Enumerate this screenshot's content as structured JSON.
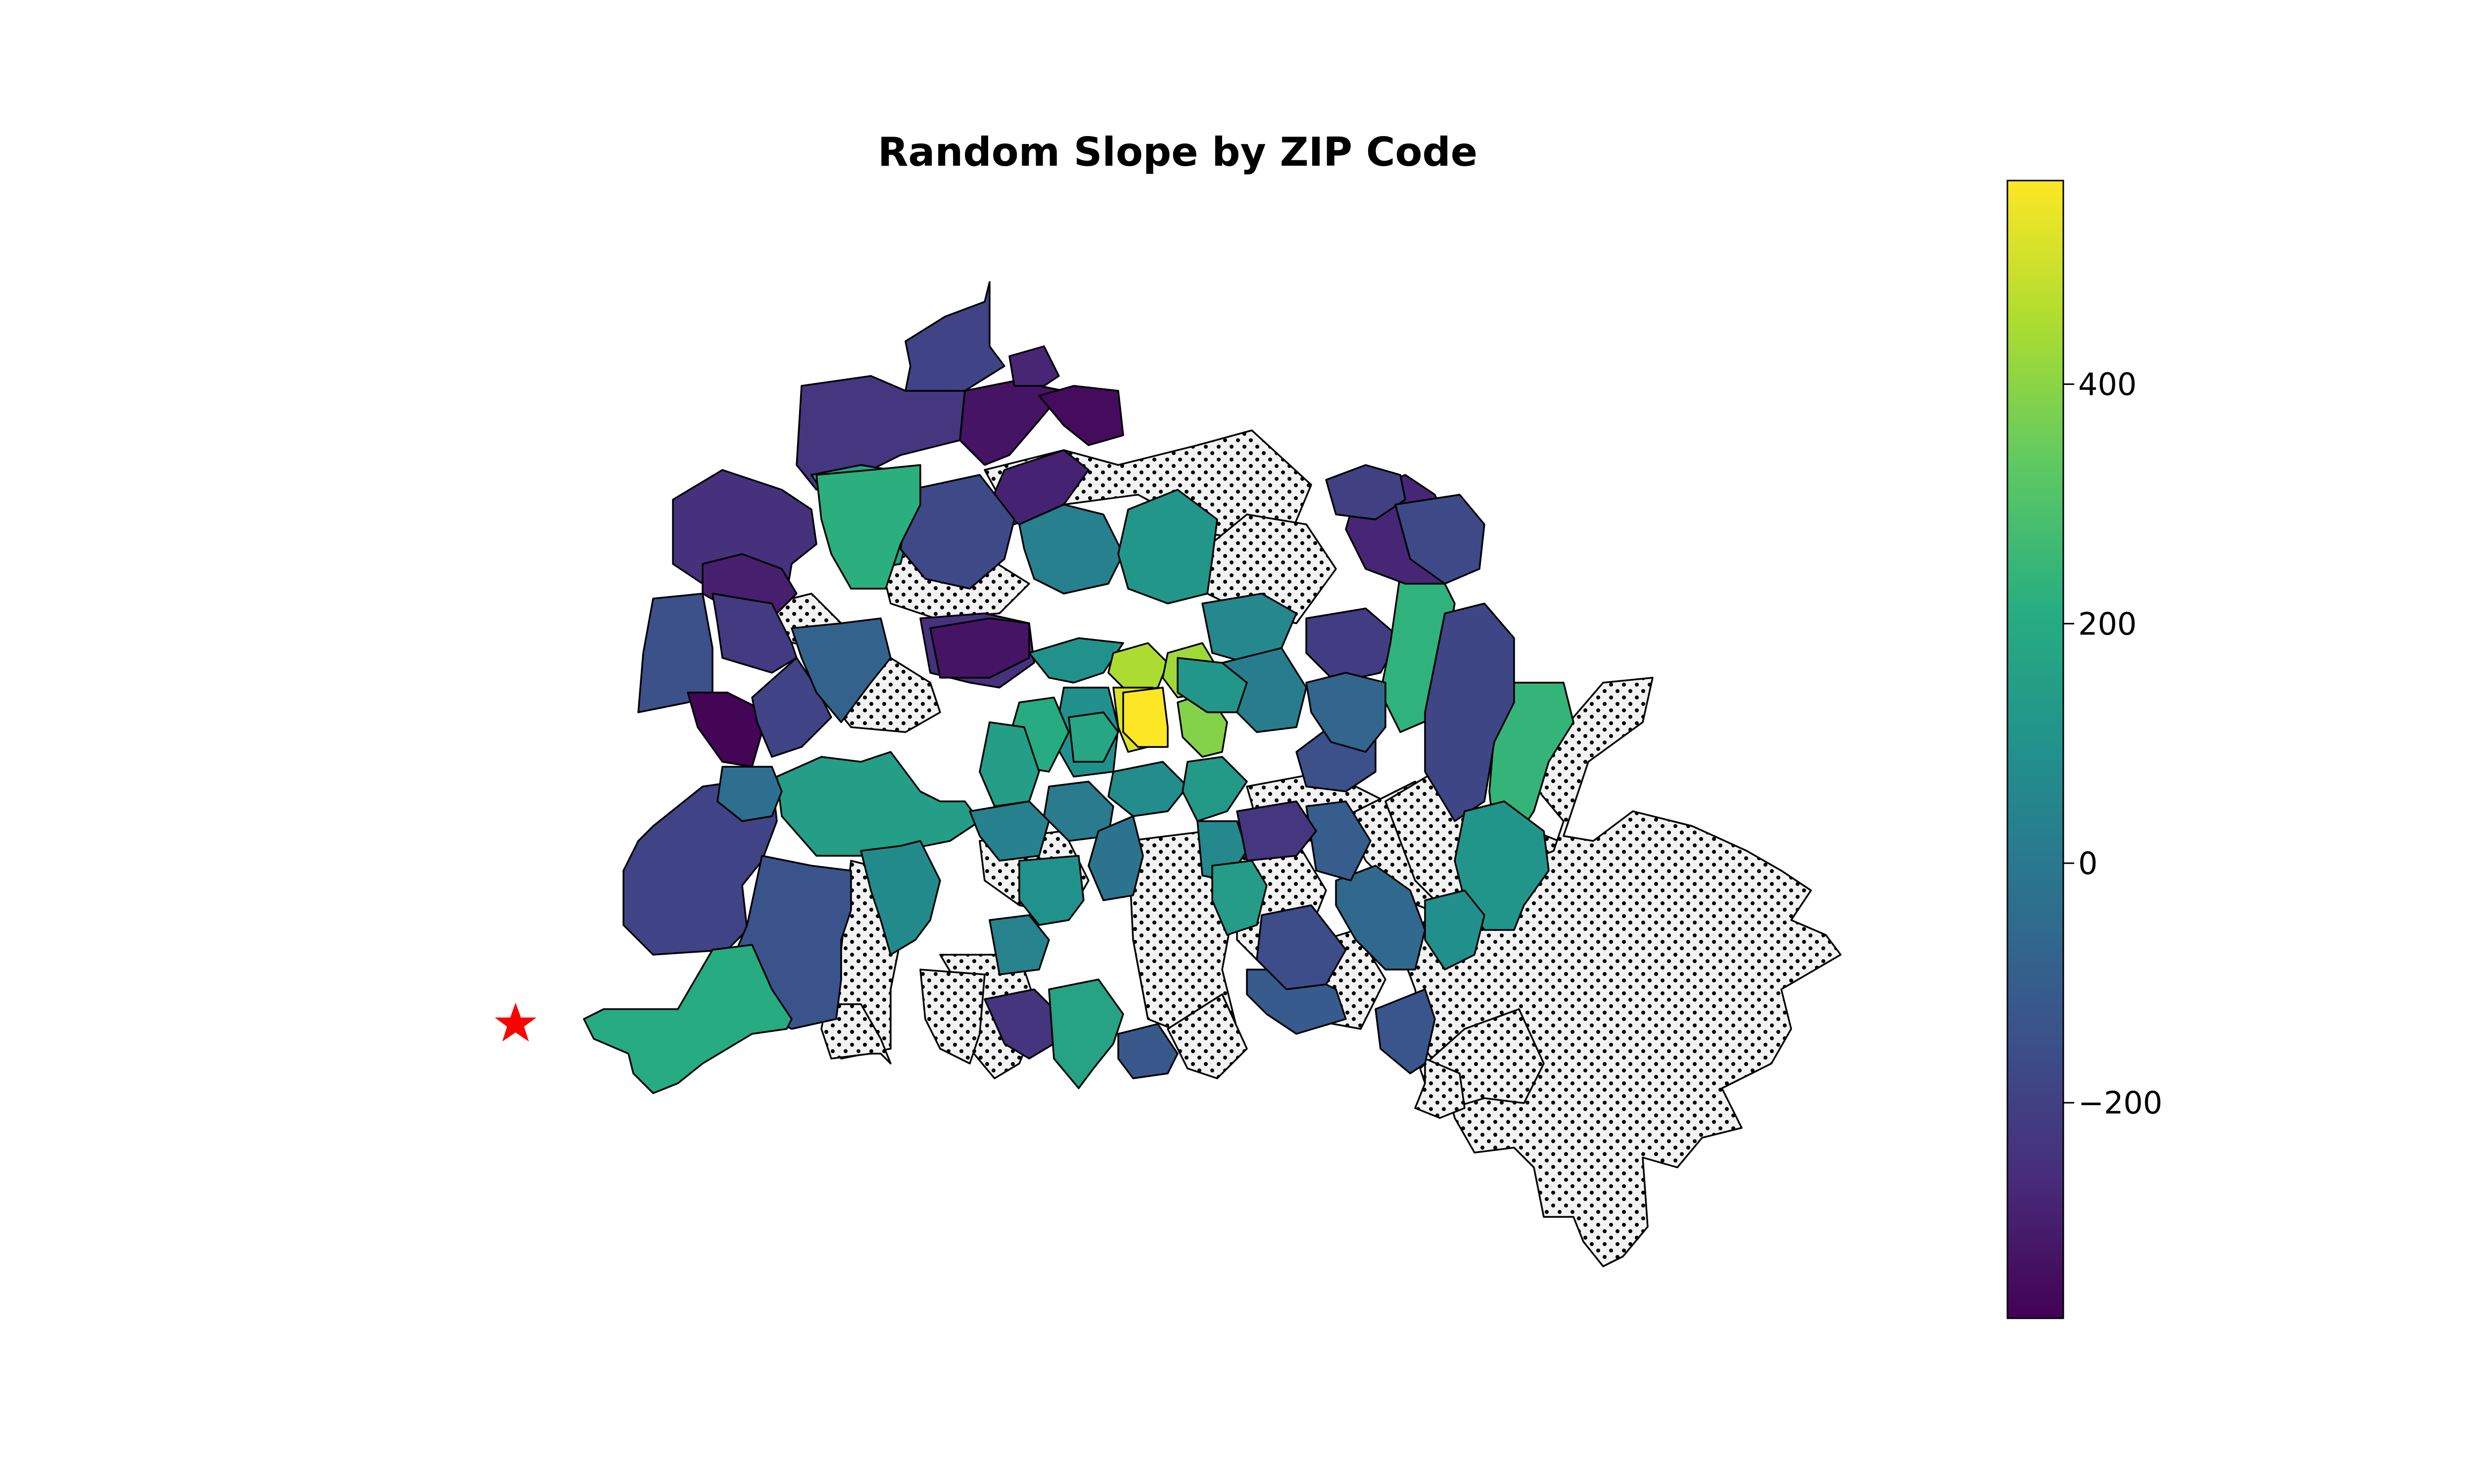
{
  "chart_data": {
    "type": "choropleth",
    "title": "Random Slope by ZIP Code",
    "colormap": "viridis",
    "colorbar": {
      "min": -380,
      "max": 570,
      "ticks": [
        {
          "value": 400,
          "label": "400"
        },
        {
          "value": 200,
          "label": "200"
        },
        {
          "value": 0,
          "label": "0"
        },
        {
          "value": -200,
          "label": "−200"
        }
      ]
    },
    "no_data_pattern": "dotted",
    "marker": {
      "shape": "star",
      "color": "#ff0000"
    },
    "regions": [
      {
        "value": -230
      },
      {
        "value": -190
      },
      {
        "value": -330
      },
      {
        "value": -350
      },
      {
        "value": -290
      },
      {
        "value": 160
      },
      {
        "value": -170
      },
      {
        "value": -250
      },
      {
        "value": -300
      },
      {
        "value": -150
      },
      {
        "value": -220
      },
      {
        "value": -370
      },
      {
        "value": -190
      },
      {
        "value": 220
      },
      {
        "value": -80
      },
      {
        "value": 150
      },
      {
        "value": -190
      },
      {
        "value": -140
      },
      {
        "value": -250
      },
      {
        "value": 70
      },
      {
        "value": 30
      },
      {
        "value": -330
      },
      {
        "value": 120
      },
      {
        "value": 100
      },
      {
        "value": 450
      },
      {
        "value": 520
      },
      {
        "value": 430
      },
      {
        "value": 570
      },
      {
        "value": 390
      },
      {
        "value": 60
      },
      {
        "value": 20
      },
      {
        "value": 90
      },
      {
        "value": 180
      },
      {
        "value": 200
      },
      {
        "value": 150
      },
      {
        "value": -150
      },
      {
        "value": -210
      },
      {
        "value": 230
      },
      {
        "value": -70
      },
      {
        "value": -280
      },
      {
        "value": 240
      },
      {
        "value": -180
      },
      {
        "value": -200
      },
      {
        "value": -170
      },
      {
        "value": 110
      },
      {
        "value": -60
      },
      {
        "value": -130
      },
      {
        "value": -110
      },
      {
        "value": -240
      },
      {
        "value": 170
      },
      {
        "value": 30
      },
      {
        "value": 10
      },
      {
        "value": 80
      },
      {
        "value": 130
      },
      {
        "value": -20
      },
      {
        "value": 100
      },
      {
        "value": 60
      },
      {
        "value": 140
      },
      {
        "value": -100
      },
      {
        "value": -160
      },
      {
        "value": 40
      },
      {
        "value": 120
      },
      {
        "value": -280
      },
      {
        "value": -230
      },
      {
        "value": -40
      },
      {
        "value": 200
      },
      {
        "value": -120
      },
      {
        "value": 90
      }
    ]
  }
}
